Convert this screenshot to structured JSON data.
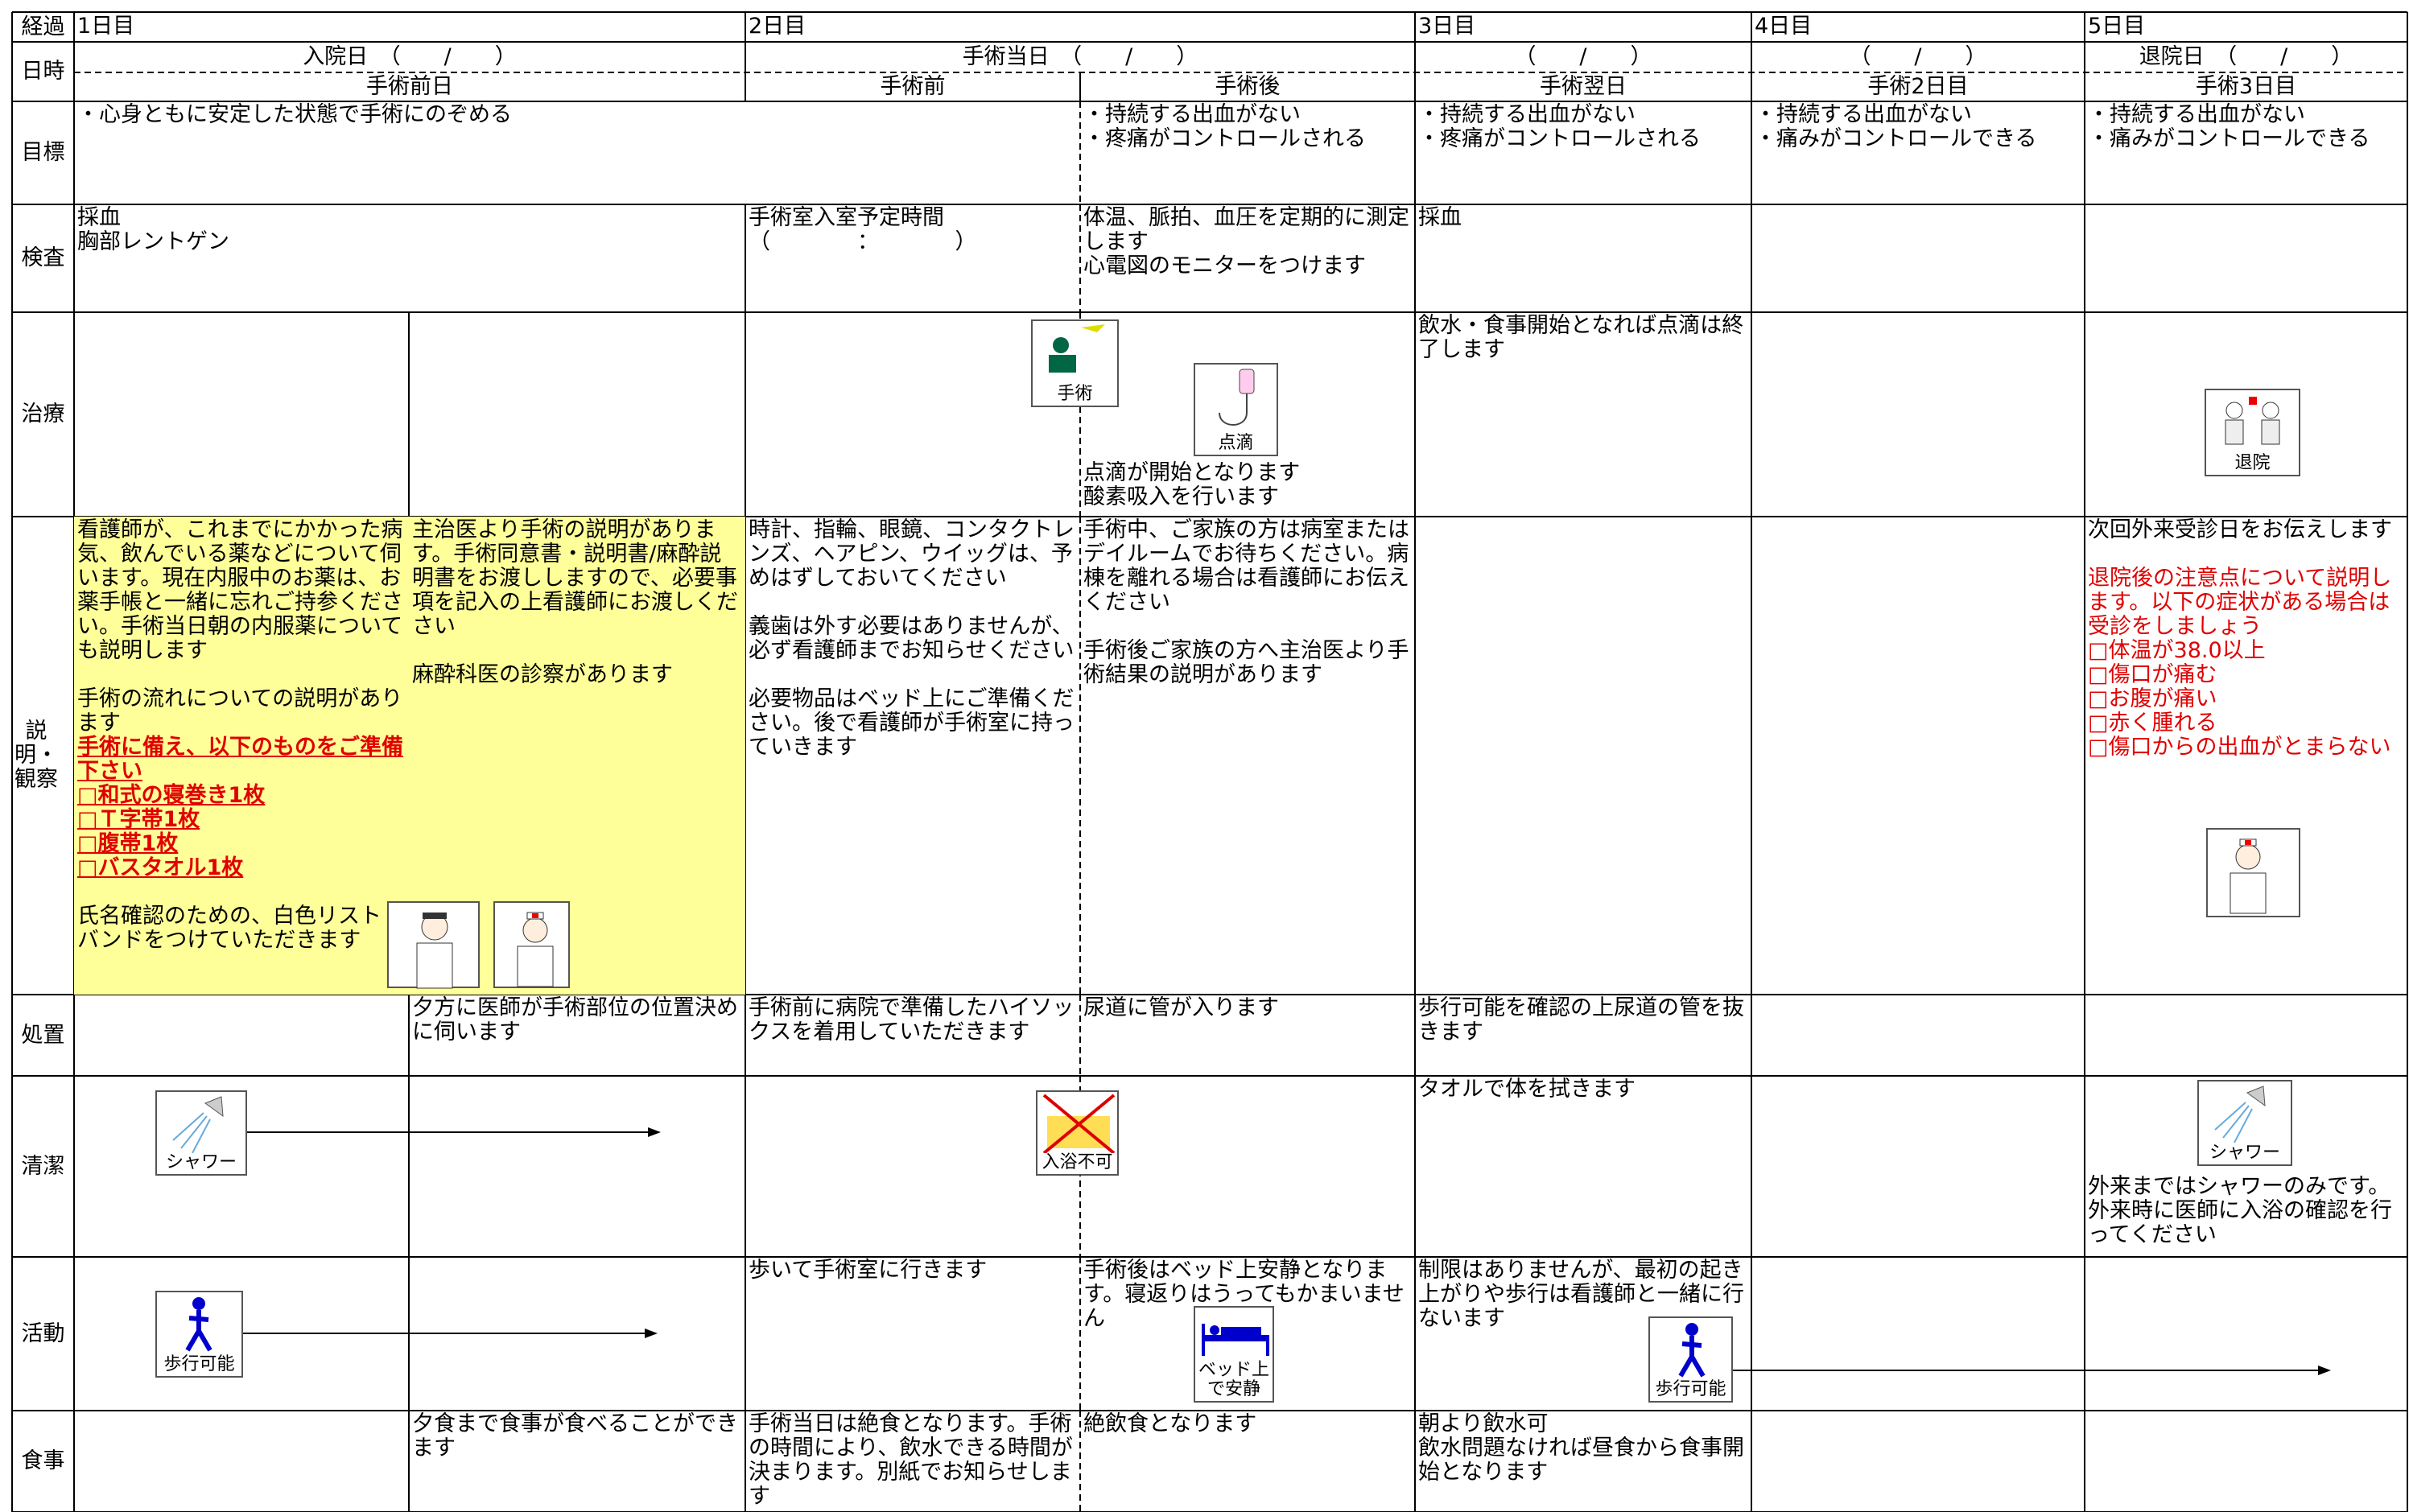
{
  "header": {
    "progress_label": "経過",
    "days": [
      "1日目",
      "2日目",
      "3日目",
      "4日目",
      "5日目"
    ],
    "datetime_label": "日時",
    "dates": [
      "入院日　（　　/　　）",
      "手術当日　（　　/　　）",
      "（　　/　　）",
      "（　　/　　）",
      "退院日　（　　/　　）"
    ],
    "phases": [
      "手術前日",
      "手術前",
      "手術後",
      "手術翌日",
      "手術2日目",
      "手術3日目"
    ]
  },
  "rows": [
    {
      "label": "目標",
      "cells": [
        {
          "groups": [
            [
              "・心身ともに安定した状態で手術にのぞめる"
            ]
          ]
        },
        {
          "groups": [
            [
              "・持続する出血がない",
              "・疼痛がコントロールされる"
            ]
          ]
        },
        {
          "groups": [
            [
              "・持続する出血がない",
              "・疼痛がコントロールされる"
            ]
          ]
        },
        {
          "groups": [
            [
              "・持続する出血がない",
              "・痛みがコントロールできる"
            ]
          ]
        },
        {
          "groups": [
            [
              "・持続する出血がない",
              "・痛みがコントロールできる"
            ]
          ]
        }
      ]
    },
    {
      "label": "検査",
      "cells": [
        {
          "groups": [
            [
              "採血",
              "胸部レントゲン"
            ]
          ]
        },
        {
          "groups": [
            [
              "手術室入室予定時間",
              "（　　　　：　　　　）"
            ]
          ]
        },
        {
          "groups": [
            [
              "体温、脈拍、血圧を定期的に測定します",
              "心電図のモニターをつけます"
            ]
          ]
        },
        {
          "groups": [
            [
              "採血"
            ]
          ]
        },
        {
          "groups": []
        },
        {
          "groups": []
        }
      ]
    },
    {
      "label": "治療",
      "cells": [
        {
          "groups": []
        },
        {
          "groups": []
        },
        {
          "groups": [],
          "icons": [
            {
              "label": "手術"
            }
          ]
        },
        {
          "groups": [
            [
              "点滴が開始となります",
              "酸素吸入を行います"
            ]
          ],
          "icons": [
            {
              "label": "点滴"
            }
          ]
        },
        {
          "groups": [
            [
              "飲水・食事開始となれば点滴は終了します"
            ]
          ]
        },
        {
          "groups": []
        },
        {
          "groups": [],
          "icons": [
            {
              "label": "退院"
            }
          ]
        }
      ]
    },
    {
      "label": "説明・観察",
      "cells": [
        {
          "background": "#ffff99",
          "groups": [
            [
              "看護師が、これまでにかかった病気、飲んでいる薬などについて伺います。現在内服中のお薬は、お薬手帳と一緒に忘れご持参ください。手術当日朝の内服薬についても説明します"
            ],
            [
              "手術の流れについての説明があります",
              {
                "text": "手術に備え、以下のものをご準備下さい",
                "color": "#e00000",
                "underline": true
              },
              {
                "text": "□和式の寝巻き1枚",
                "color": "#e00000",
                "underline": true
              },
              {
                "text": "□Ｔ字帯1枚",
                "color": "#e00000",
                "underline": true
              },
              {
                "text": "□腹帯1枚",
                "color": "#e00000",
                "underline": true
              },
              {
                "text": "□バスタオル1枚",
                "color": "#e00000",
                "underline": true
              }
            ],
            [
              "氏名確認のための、白色リストバンドをつけていただきます"
            ]
          ]
        },
        {
          "background": "#ffff99",
          "groups": [
            [
              "主治医より手術の説明があります。手術同意書・説明書/麻酔説明書をお渡ししますので、必要事項を記入の上看護師にお渡しください"
            ],
            [
              "麻酔科医の診察があります"
            ]
          ]
        },
        {
          "groups": [
            [
              "時計、指輪、眼鏡、コンタクトレンズ、ヘアピン、ウイッグは、予めはずしておいてください"
            ],
            [
              "義歯は外す必要はありませんが、必ず看護師までお知らせください"
            ],
            [
              "必要物品はベッド上にご準備ください。後で看護師が手術室に持っていきます"
            ]
          ]
        },
        {
          "groups": [
            [
              "手術中、ご家族の方は病室またはデイルームでお待ちください。病棟を離れる場合は看護師にお伝えください"
            ],
            [
              "手術後ご家族の方へ主治医より手術結果の説明があります"
            ]
          ]
        },
        {
          "groups": []
        },
        {
          "groups": []
        },
        {
          "groups": [
            [
              "次回外来受診日をお伝えします"
            ],
            [
              {
                "text": "退院後の注意点について説明します。以下の症状がある場合は受診をしましょう",
                "color": "#e00000"
              },
              {
                "text": "□体温が38.0以上",
                "color": "#e00000"
              },
              {
                "text": "□傷口が痛む",
                "color": "#e00000"
              },
              {
                "text": "□お腹が痛い",
                "color": "#e00000"
              },
              {
                "text": "□赤く腫れる",
                "color": "#e00000"
              },
              {
                "text": "□傷口からの出血がとまらない",
                "color": "#e00000"
              }
            ]
          ]
        }
      ]
    },
    {
      "label": "処置",
      "cells": [
        {
          "groups": []
        },
        {
          "groups": [
            [
              "夕方に医師が手術部位の位置決めに伺います"
            ]
          ]
        },
        {
          "groups": [
            [
              "手術前に病院で準備したハイソックスを着用していただきます"
            ]
          ]
        },
        {
          "groups": [
            [
              "尿道に管が入ります"
            ]
          ]
        },
        {
          "groups": [
            [
              "歩行可能を確認の上尿道の管を抜きます"
            ]
          ]
        },
        {
          "groups": []
        },
        {
          "groups": []
        }
      ]
    },
    {
      "label": "清潔",
      "cells": [
        {
          "groups": [],
          "icons": [
            {
              "label": "シャワー"
            }
          ]
        },
        {
          "groups": []
        },
        {
          "groups": [],
          "icons": [
            {
              "label": "入浴不可"
            }
          ]
        },
        {
          "groups": []
        },
        {
          "groups": [
            [
              "タオルで体を拭きます"
            ]
          ]
        },
        {
          "groups": []
        },
        {
          "groups": [
            [
              "外来まではシャワーのみです。外来時に医師に入浴の確認を行ってください"
            ]
          ],
          "icons": [
            {
              "label": "シャワー"
            }
          ]
        }
      ]
    },
    {
      "label": "活動",
      "cells": [
        {
          "groups": [],
          "icons": [
            {
              "label": "歩行可能"
            }
          ]
        },
        {
          "groups": []
        },
        {
          "groups": [
            [
              "歩いて手術室に行きます"
            ]
          ]
        },
        {
          "groups": [
            [
              "手術後はベッド上安静となります。寝返りはうってもかまいません"
            ]
          ],
          "icons": [
            {
              "label": "ベッド上で安静"
            }
          ]
        },
        {
          "groups": [
            [
              "制限はありませんが、最初の起き上がりや歩行は看護師と一緒に行ないます"
            ]
          ],
          "icons": [
            {
              "label": "歩行可能"
            }
          ]
        },
        {
          "groups": []
        },
        {
          "groups": []
        }
      ]
    },
    {
      "label": "食事",
      "cells": [
        {
          "groups": []
        },
        {
          "groups": [
            [
              "夕食まで食事が食べることができます"
            ]
          ]
        },
        {
          "groups": [
            [
              "手術当日は絶食となります。手術の時間により、飲水できる時間が決まります。別紙でお知らせします"
            ]
          ]
        },
        {
          "groups": [
            [
              "絶飲食となります"
            ]
          ]
        },
        {
          "groups": [
            [
              "朝より飲水可",
              "飲水問題なければ昼食から食事開始となります"
            ]
          ]
        },
        {
          "groups": []
        },
        {
          "groups": []
        }
      ]
    }
  ]
}
